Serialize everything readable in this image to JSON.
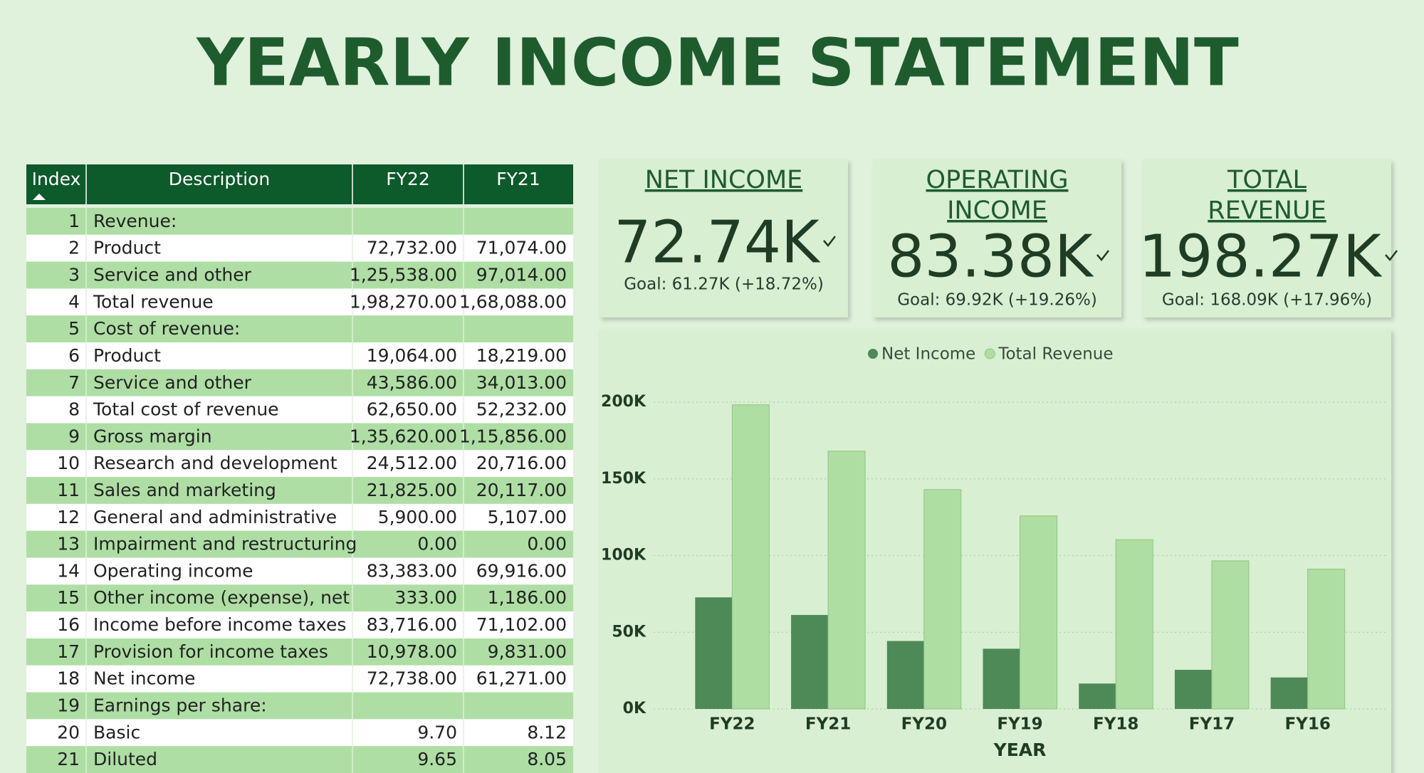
{
  "title": "YEARLY INCOME STATEMENT",
  "table": {
    "columns": [
      "Index",
      "Description",
      "FY22",
      "FY21"
    ],
    "rows": [
      [
        1,
        "Revenue:",
        null,
        null
      ],
      [
        2,
        "Product",
        "72,732.00",
        "71,074.00"
      ],
      [
        3,
        "Service and other",
        "1,25,538.00",
        "97,014.00"
      ],
      [
        4,
        "Total revenue",
        "1,98,270.00",
        "1,68,088.00"
      ],
      [
        5,
        "Cost of revenue:",
        null,
        null
      ],
      [
        6,
        "Product",
        "19,064.00",
        "18,219.00"
      ],
      [
        7,
        "Service and other",
        "43,586.00",
        "34,013.00"
      ],
      [
        8,
        "Total cost of revenue",
        "62,650.00",
        "52,232.00"
      ],
      [
        9,
        "Gross margin",
        "1,35,620.00",
        "1,15,856.00"
      ],
      [
        10,
        "Research and development",
        "24,512.00",
        "20,716.00"
      ],
      [
        11,
        "Sales and marketing",
        "21,825.00",
        "20,117.00"
      ],
      [
        12,
        "General and administrative",
        "5,900.00",
        "5,107.00"
      ],
      [
        13,
        "Impairment and restructuring",
        "0.00",
        "0.00"
      ],
      [
        14,
        "Operating income",
        "83,383.00",
        "69,916.00"
      ],
      [
        15,
        "Other income (expense), net",
        "333.00",
        "1,186.00"
      ],
      [
        16,
        "Income before income taxes",
        "83,716.00",
        "71,102.00"
      ],
      [
        17,
        "Provision for income taxes",
        "10,978.00",
        "9,831.00"
      ],
      [
        18,
        "Net income",
        "72,738.00",
        "61,271.00"
      ],
      [
        19,
        "Earnings per share:",
        null,
        null
      ],
      [
        20,
        "Basic",
        "9.70",
        "8.12"
      ],
      [
        21,
        "Diluted",
        "9.65",
        "8.05"
      ]
    ]
  },
  "kpis": [
    {
      "title": "NET INCOME",
      "value": "72.74K",
      "goal": "Goal: 61.27K (+18.72%)"
    },
    {
      "title": "OPERATING INCOME",
      "value": "83.38K",
      "goal": "Goal: 69.92K (+19.26%)"
    },
    {
      "title": "TOTAL REVENUE",
      "value": "198.27K",
      "goal": "Goal: 168.09K (+17.96%)"
    }
  ],
  "chart_data": {
    "type": "bar",
    "categories": [
      "FY22",
      "FY21",
      "FY20",
      "FY19",
      "FY18",
      "FY17",
      "FY16"
    ],
    "series": [
      {
        "name": "Net Income",
        "color": "#4e8a58",
        "values": [
          72738,
          61271,
          44281,
          39240,
          16571,
          25489,
          20539
        ]
      },
      {
        "name": "Total Revenue",
        "color": "#afdea3",
        "values": [
          198270,
          168088,
          143015,
          125843,
          110360,
          96571,
          91154
        ]
      }
    ],
    "xlabel": "YEAR",
    "ylim": [
      0,
      200000
    ],
    "yticks": [
      {
        "value": 0,
        "label": "0K"
      },
      {
        "value": 50000,
        "label": "50K"
      },
      {
        "value": 100000,
        "label": "100K"
      },
      {
        "value": 150000,
        "label": "150K"
      },
      {
        "value": 200000,
        "label": "200K"
      }
    ],
    "grid": true,
    "legend": "top"
  }
}
